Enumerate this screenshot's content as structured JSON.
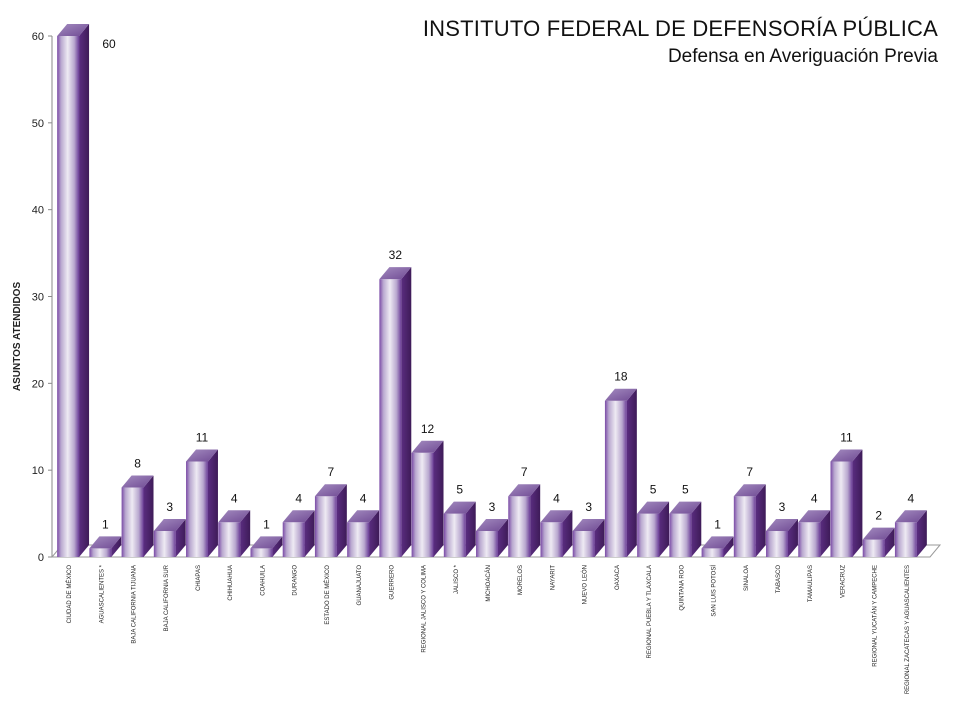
{
  "title": "INSTITUTO FEDERAL DE DEFENSORÍA PÚBLICA",
  "subtitle": "Defensa en Averiguación Previa",
  "chart_data": {
    "type": "bar",
    "title": "INSTITUTO FEDERAL DE DEFENSORÍA PÚBLICA",
    "subtitle": "Defensa en Averiguación Previa",
    "xlabel": "",
    "ylabel": "ASUNTOS ATENDIDOS",
    "ylim": [
      0,
      60
    ],
    "yticks": [
      0,
      10,
      20,
      30,
      40,
      50,
      60
    ],
    "grid": false,
    "legend": "none",
    "categories": [
      "CIUDAD DE MÉXICO",
      "AGUASCALIENTES *",
      "BAJA CALIFORNIA TIJUANA",
      "BAJA CALIFORNIA SUR",
      "CHIAPAS",
      "CHIHUAHUA",
      "COAHUILA",
      "DURANGO",
      "ESTADO DE MÉXICO",
      "GUANAJUATO",
      "GUERRERO",
      "REGIONAL JALISCO Y COLIMA",
      "JALISCO *",
      "MICHOACÁN",
      "MORELOS",
      "NAYARIT",
      "NUEVO LEÓN",
      "OAXACA",
      "REGIONAL PUEBLA Y TLAXCALA",
      "QUINTANA ROO",
      "SAN LUIS POTOSÍ",
      "SINALOA",
      "TABASCO",
      "TAMAULIPAS",
      "VERACRUZ",
      "REGIONAL YUCATÁN Y CAMPECHE",
      "REGIONAL ZACATECAS Y AGUASCALIENTES"
    ],
    "values": [
      60,
      1,
      8,
      3,
      11,
      4,
      1,
      4,
      7,
      4,
      32,
      12,
      5,
      3,
      7,
      4,
      3,
      18,
      5,
      5,
      1,
      7,
      3,
      4,
      11,
      2,
      4
    ],
    "colors": {
      "bar_light": "#e9e4ef",
      "bar_mid": "#b9a8cf",
      "bar_dark": "#6b3d97",
      "bar_top": "#8a6ca8",
      "bar_side": "#4b2468"
    }
  }
}
